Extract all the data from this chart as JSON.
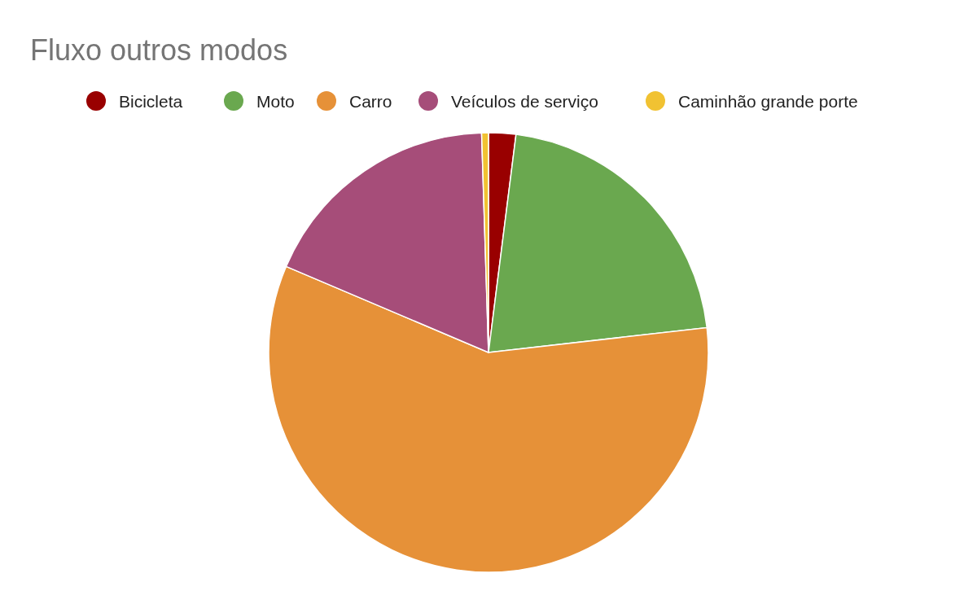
{
  "chart_data": {
    "type": "pie",
    "title": "Fluxo outros modos",
    "categories": [
      "Bicicleta",
      "Moto",
      "Carro",
      "Veículos de serviço",
      "Caminhão grande porte"
    ],
    "values": [
      2.0,
      21.2,
      58.2,
      18.1,
      0.5
    ],
    "colors": [
      "#990000",
      "#6aa84f",
      "#e69138",
      "#a64d79",
      "#f1c232"
    ],
    "legend": "top"
  }
}
